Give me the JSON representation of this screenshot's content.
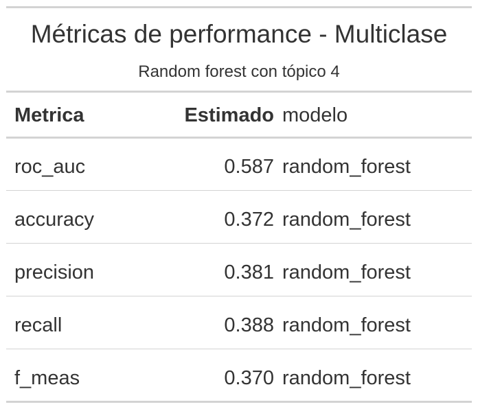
{
  "table": {
    "title": "Métricas de performance - Multiclase",
    "subtitle": "Random forest con tópico 4",
    "columns": {
      "metric": "Metrica",
      "estimate": "Estimado",
      "model": "modelo"
    },
    "rows": [
      {
        "metric": "roc_auc",
        "estimate": "0.587",
        "model": "random_forest"
      },
      {
        "metric": "accuracy",
        "estimate": "0.372",
        "model": "random_forest"
      },
      {
        "metric": "precision",
        "estimate": "0.381",
        "model": "random_forest"
      },
      {
        "metric": "recall",
        "estimate": "0.388",
        "model": "random_forest"
      },
      {
        "metric": "f_meas",
        "estimate": "0.370",
        "model": "random_forest"
      }
    ]
  }
}
